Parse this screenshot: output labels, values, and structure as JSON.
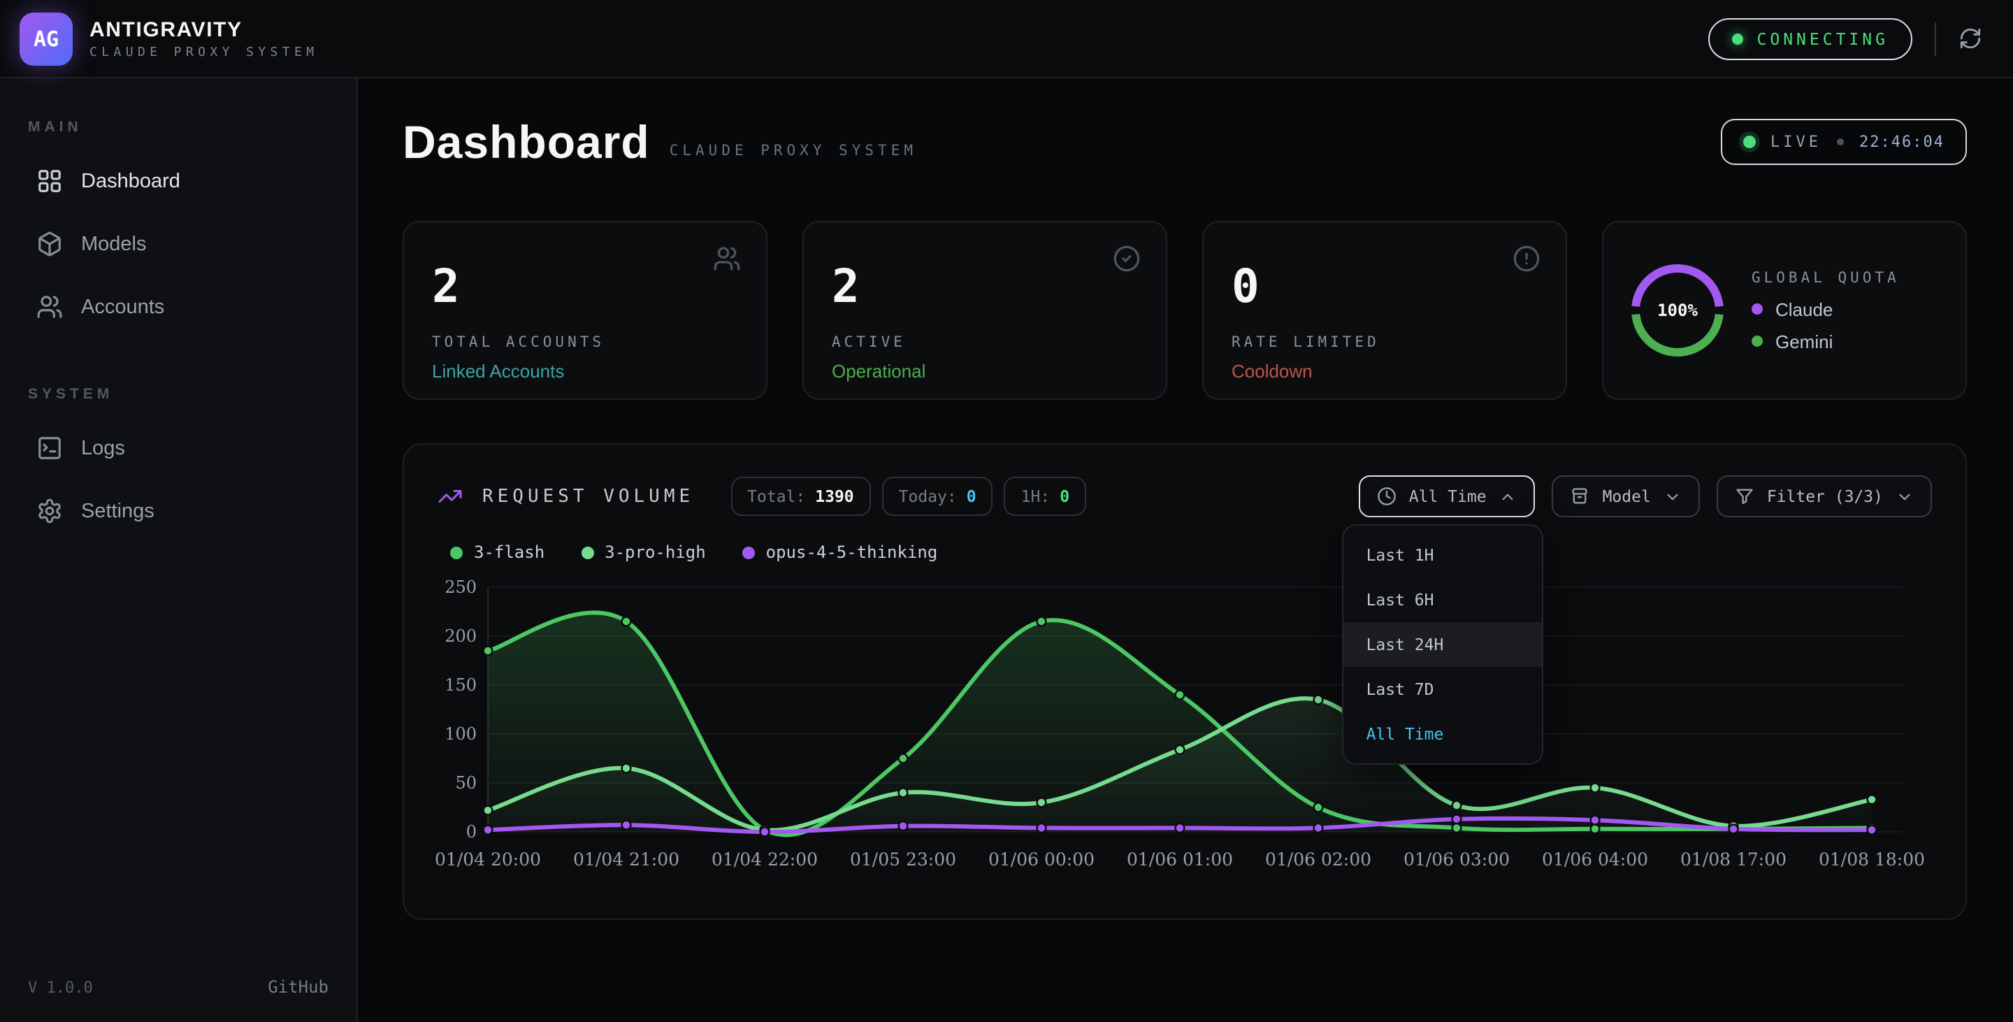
{
  "topbar": {
    "logo_text": "AG",
    "app_name": "ANTIGRAVITY",
    "app_subtitle": "CLAUDE PROXY SYSTEM",
    "status_badge": "CONNECTING",
    "status_color": "#4ade80"
  },
  "sidebar": {
    "sections": [
      {
        "label": "MAIN",
        "items": [
          {
            "label": "Dashboard",
            "icon": "dashboard-grid-icon",
            "active": true
          },
          {
            "label": "Models",
            "icon": "cube-icon",
            "active": false
          },
          {
            "label": "Accounts",
            "icon": "users-icon",
            "active": false
          }
        ]
      },
      {
        "label": "SYSTEM",
        "items": [
          {
            "label": "Logs",
            "icon": "terminal-icon",
            "active": false
          },
          {
            "label": "Settings",
            "icon": "gear-icon",
            "active": false
          }
        ]
      }
    ],
    "version": "V 1.0.0",
    "github_link": "GitHub"
  },
  "header": {
    "title": "Dashboard",
    "subtitle": "CLAUDE PROXY SYSTEM",
    "live_label": "LIVE",
    "live_time": "22:46:04",
    "live_dot_color": "#4ade80"
  },
  "stat_cards": [
    {
      "value": "2",
      "label": "TOTAL ACCOUNTS",
      "sub": "Linked Accounts",
      "sub_color": "#3ba5a8",
      "icon": "users-icon"
    },
    {
      "value": "2",
      "label": "ACTIVE",
      "sub": "Operational",
      "sub_color": "#4caf50",
      "icon": "check-circle-icon"
    },
    {
      "value": "0",
      "label": "RATE LIMITED",
      "sub": "Cooldown",
      "sub_color": "#bf544e",
      "icon": "alert-circle-icon"
    }
  ],
  "quota_card": {
    "percent": "100%",
    "label": "GLOBAL QUOTA",
    "ring_colors": [
      "#a259f0",
      "#4caf50"
    ],
    "legend": [
      {
        "name": "Claude",
        "color": "#a259f0"
      },
      {
        "name": "Gemini",
        "color": "#4caf50"
      }
    ]
  },
  "chart_panel": {
    "title": "REQUEST VOLUME",
    "stats": [
      {
        "label": "Total:",
        "value": "1390",
        "color": "#f2f3f5"
      },
      {
        "label": "Today:",
        "value": "0",
        "color": "#45c4f0"
      },
      {
        "label": "1H:",
        "value": "0",
        "color": "#4ade80"
      }
    ],
    "buttons": [
      {
        "label": "All Time",
        "icon": "clock-icon",
        "chevron": "up",
        "active": true
      },
      {
        "label": "Model",
        "icon": "box-icon",
        "chevron": "down",
        "active": false
      },
      {
        "label": "Filter (3/3)",
        "icon": "funnel-icon",
        "chevron": "down",
        "active": false
      }
    ],
    "dropdown": {
      "items": [
        {
          "label": "Last 1H",
          "hover": false,
          "selected": false
        },
        {
          "label": "Last 6H",
          "hover": false,
          "selected": false
        },
        {
          "label": "Last 24H",
          "hover": true,
          "selected": false
        },
        {
          "label": "Last 7D",
          "hover": false,
          "selected": false
        },
        {
          "label": "All Time",
          "hover": false,
          "selected": true
        }
      ],
      "selected_color": "#45c4f0"
    }
  },
  "chart_data": {
    "type": "line",
    "title": "REQUEST VOLUME",
    "categories": [
      "01/04 20:00",
      "01/04 21:00",
      "01/04 22:00",
      "01/05 23:00",
      "01/06 00:00",
      "01/06 01:00",
      "01/06 02:00",
      "01/06 03:00",
      "01/06 04:00",
      "01/08 17:00",
      "01/08 18:00"
    ],
    "series": [
      {
        "name": "3-flash",
        "color": "#4cc764",
        "values": [
          185,
          215,
          2,
          75,
          215,
          140,
          25,
          4,
          3,
          3,
          4
        ]
      },
      {
        "name": "3-pro-high",
        "color": "#76db8e",
        "values": [
          22,
          65,
          2,
          40,
          30,
          84,
          135,
          27,
          45,
          6,
          33
        ]
      },
      {
        "name": "opus-4-5-thinking",
        "color": "#a259f0",
        "values": [
          2,
          7,
          0,
          6,
          4,
          4,
          4,
          13,
          12,
          3,
          2
        ]
      }
    ],
    "xlabel": "",
    "ylabel": "",
    "ylim": [
      0,
      250
    ],
    "yticks": [
      0,
      50,
      100,
      150,
      200,
      250
    ],
    "grid": true,
    "smooth": true,
    "area_fill": true,
    "legend_position": "top-left"
  }
}
